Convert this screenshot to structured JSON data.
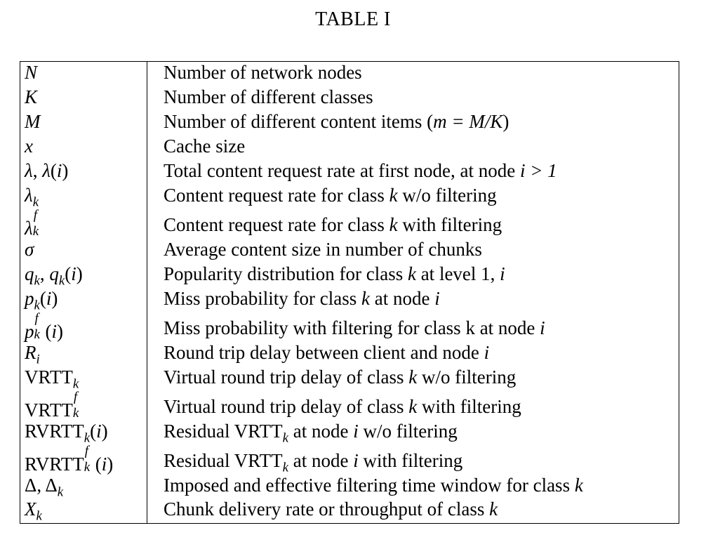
{
  "caption": "TABLE I",
  "rows": [
    {
      "symbol": "N",
      "description": "Number of network nodes"
    },
    {
      "symbol": "K",
      "description": "Number of different classes"
    },
    {
      "symbol": "M",
      "description_pre": "Number of different content items (",
      "description_math": "m = M/K",
      "description_post": ")"
    },
    {
      "symbol": "x",
      "description": "Cache size"
    },
    {
      "symbol": "λ, λ(i)",
      "description_pre": "Total content request rate at first node, at node ",
      "description_math": "i > 1",
      "description_post": ""
    },
    {
      "symbol": "λk",
      "description_pre": "Content request rate for class ",
      "description_math": "k",
      "description_post": " w/o filtering"
    },
    {
      "symbol": "λkf",
      "description_pre": "Content request rate for class ",
      "description_math": "k",
      "description_post": " with filtering"
    },
    {
      "symbol": "σ",
      "description": "Average content size in number of chunks"
    },
    {
      "symbol": "qk, qk(i)",
      "description_pre": "Popularity distribution for class ",
      "description_math": "k",
      "description_mid": " at level 1, ",
      "description_math2": "i"
    },
    {
      "symbol": "pk(i)",
      "description_pre": "Miss probability for class ",
      "description_math": "k",
      "description_mid": " at node ",
      "description_math2": "i"
    },
    {
      "symbol": "pkf(i)",
      "description_pre": "Miss probability with filtering for class k at node ",
      "description_math": "i",
      "description_post": ""
    },
    {
      "symbol": "Ri",
      "description_pre": "Round trip delay between client and node ",
      "description_math": "i",
      "description_post": ""
    },
    {
      "symbol": "VRTTk",
      "description_pre": "Virtual round trip delay of class ",
      "description_math": "k",
      "description_post": " w/o filtering"
    },
    {
      "symbol": "VRTTkf",
      "description_pre": "Virtual round trip delay of class ",
      "description_math": "k",
      "description_post": " with filtering"
    },
    {
      "symbol": "RVRTTk(i)",
      "description_pre": "Residual VRTT",
      "description_sub": "k",
      "description_mid": " at node ",
      "description_math2": "i",
      "description_post": " w/o filtering"
    },
    {
      "symbol": "RVRTTkf(i)",
      "description_pre": "Residual VRTT",
      "description_sub": "k",
      "description_mid": " at node ",
      "description_math2": "i",
      "description_post": " with filtering"
    },
    {
      "symbol": "Δ, Δk",
      "description_pre": "Imposed and effective filtering time window for class ",
      "description_math": "k",
      "description_post": ""
    },
    {
      "symbol": "Xk",
      "description_pre": "Chunk delivery rate or throughput of class ",
      "description_math": "k",
      "description_post": ""
    }
  ]
}
